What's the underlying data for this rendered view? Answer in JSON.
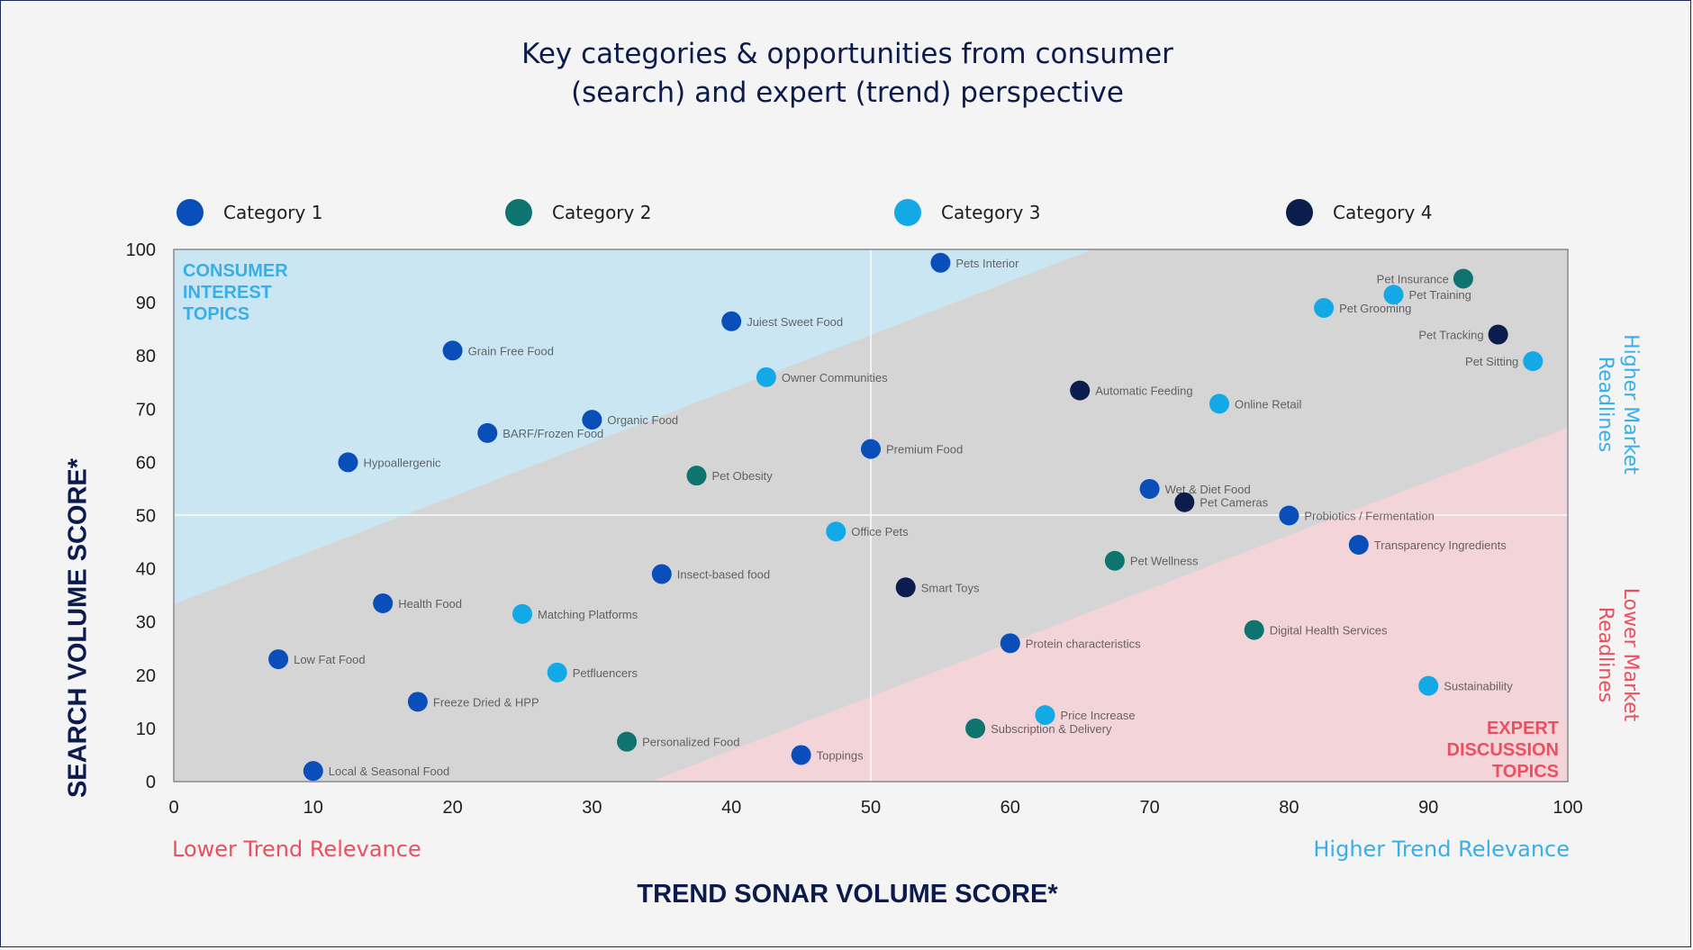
{
  "title_line1": "Key categories & opportunities from consumer",
  "title_line2": "(search) and expert (trend) perspective",
  "colors": {
    "cat1": "#0a4fb9",
    "cat2": "#0d7470",
    "cat3": "#13a9e6",
    "cat4": "#0b1d4d",
    "consumer_zone": "#cbe6f3",
    "expert_zone": "#f3d4d8",
    "middle_zone": "#d5d5d5",
    "blue_text": "#3aaee6",
    "red_text": "#ea5060"
  },
  "legend": [
    {
      "label": "Category 1",
      "color": "#0a4fb9"
    },
    {
      "label": "Category 2",
      "color": "#0d7470"
    },
    {
      "label": "Category 3",
      "color": "#13a9e6"
    },
    {
      "label": "Category 4",
      "color": "#0b1d4d"
    }
  ],
  "x_axis_title": "TREND SONAR VOLUME SCORE*",
  "y_axis_title": "SEARCH VOLUME SCORE*",
  "lower_trend": "Lower Trend Relevance",
  "higher_trend": "Higher Trend Relevance",
  "higher_market": "Higher Market Readlines",
  "lower_market": "Lower Market Readlines",
  "consumer_zone_label": [
    "CONSUMER",
    "INTEREST",
    "TOPICS"
  ],
  "expert_zone_label": [
    "EXPERT",
    "DISCUSSION",
    "TOPICS"
  ],
  "chart_data": {
    "type": "scatter",
    "title": "Key categories & opportunities from consumer (search) and expert (trend) perspective",
    "xlabel": "TREND SONAR VOLUME SCORE*",
    "ylabel": "SEARCH VOLUME SCORE*",
    "xlim": [
      0,
      100
    ],
    "ylim": [
      0,
      100
    ],
    "xticks": [
      0,
      10,
      20,
      30,
      40,
      50,
      60,
      70,
      80,
      90,
      100
    ],
    "yticks": [
      0,
      10,
      20,
      30,
      40,
      50,
      60,
      70,
      80,
      90,
      100
    ],
    "grid": false,
    "legend_position": "top",
    "points": [
      {
        "x": 55,
        "y": 97.5,
        "category": 1,
        "label": "Pets Interior"
      },
      {
        "x": 40,
        "y": 86.5,
        "category": 1,
        "label": "Juiest Sweet Food"
      },
      {
        "x": 20,
        "y": 81,
        "category": 1,
        "label": "Grain Free Food"
      },
      {
        "x": 30,
        "y": 68,
        "category": 1,
        "label": "Organic Food"
      },
      {
        "x": 22.5,
        "y": 65.5,
        "category": 1,
        "label": "BARF/Frozen Food"
      },
      {
        "x": 12.5,
        "y": 60,
        "category": 1,
        "label": "Hypoallergenic"
      },
      {
        "x": 50,
        "y": 62.5,
        "category": 1,
        "label": "Premium Food"
      },
      {
        "x": 35,
        "y": 39,
        "category": 1,
        "label": "Insect-based food"
      },
      {
        "x": 15,
        "y": 33.5,
        "category": 1,
        "label": "Health Food"
      },
      {
        "x": 7.5,
        "y": 23,
        "category": 1,
        "label": "Low Fat Food"
      },
      {
        "x": 17.5,
        "y": 15,
        "category": 1,
        "label": "Freeze Dried & HPP"
      },
      {
        "x": 10,
        "y": 2,
        "category": 1,
        "label": "Local & Seasonal Food"
      },
      {
        "x": 45,
        "y": 5,
        "category": 1,
        "label": "Toppings"
      },
      {
        "x": 60,
        "y": 26,
        "category": 1,
        "label": "Protein characteristics"
      },
      {
        "x": 70,
        "y": 55,
        "category": 1,
        "label": "Wet & Diet Food"
      },
      {
        "x": 80,
        "y": 50,
        "category": 1,
        "label": "Probiotics / Fermentation"
      },
      {
        "x": 85,
        "y": 44.5,
        "category": 1,
        "label": "Transparency Ingredients"
      },
      {
        "x": 37.5,
        "y": 57.5,
        "category": 2,
        "label": "Pet Obesity"
      },
      {
        "x": 67.5,
        "y": 41.5,
        "category": 2,
        "label": "Pet Wellness"
      },
      {
        "x": 77.5,
        "y": 28.5,
        "category": 2,
        "label": "Digital Health Services"
      },
      {
        "x": 57.5,
        "y": 10,
        "category": 2,
        "label": "Subscription & Delivery"
      },
      {
        "x": 32.5,
        "y": 7.5,
        "category": 2,
        "label": "Personalized Food"
      },
      {
        "x": 92.5,
        "y": 94.5,
        "category": 2,
        "label": "Pet Insurance"
      },
      {
        "x": 87.5,
        "y": 91.5,
        "category": 3,
        "label": "Pet Training"
      },
      {
        "x": 82.5,
        "y": 89,
        "category": 3,
        "label": "Pet Grooming"
      },
      {
        "x": 97.5,
        "y": 79,
        "category": 3,
        "label": "Pet Sitting"
      },
      {
        "x": 42.5,
        "y": 76,
        "category": 3,
        "label": "Owner Communities"
      },
      {
        "x": 75,
        "y": 71,
        "category": 3,
        "label": "Online Retail"
      },
      {
        "x": 47.5,
        "y": 47,
        "category": 3,
        "label": "Office Pets"
      },
      {
        "x": 25,
        "y": 31.5,
        "category": 3,
        "label": "Matching Platforms"
      },
      {
        "x": 27.5,
        "y": 20.5,
        "category": 3,
        "label": "Petfluencers"
      },
      {
        "x": 62.5,
        "y": 12.5,
        "category": 3,
        "label": "Price Increase"
      },
      {
        "x": 90,
        "y": 18,
        "category": 3,
        "label": "Sustainability"
      },
      {
        "x": 95,
        "y": 84,
        "category": 4,
        "label": "Pet Tracking"
      },
      {
        "x": 65,
        "y": 73.5,
        "category": 4,
        "label": "Automatic Feeding"
      },
      {
        "x": 72.5,
        "y": 52.5,
        "category": 4,
        "label": "Pet Cameras"
      },
      {
        "x": 52.5,
        "y": 36.5,
        "category": 4,
        "label": "Smart Toys"
      }
    ]
  }
}
